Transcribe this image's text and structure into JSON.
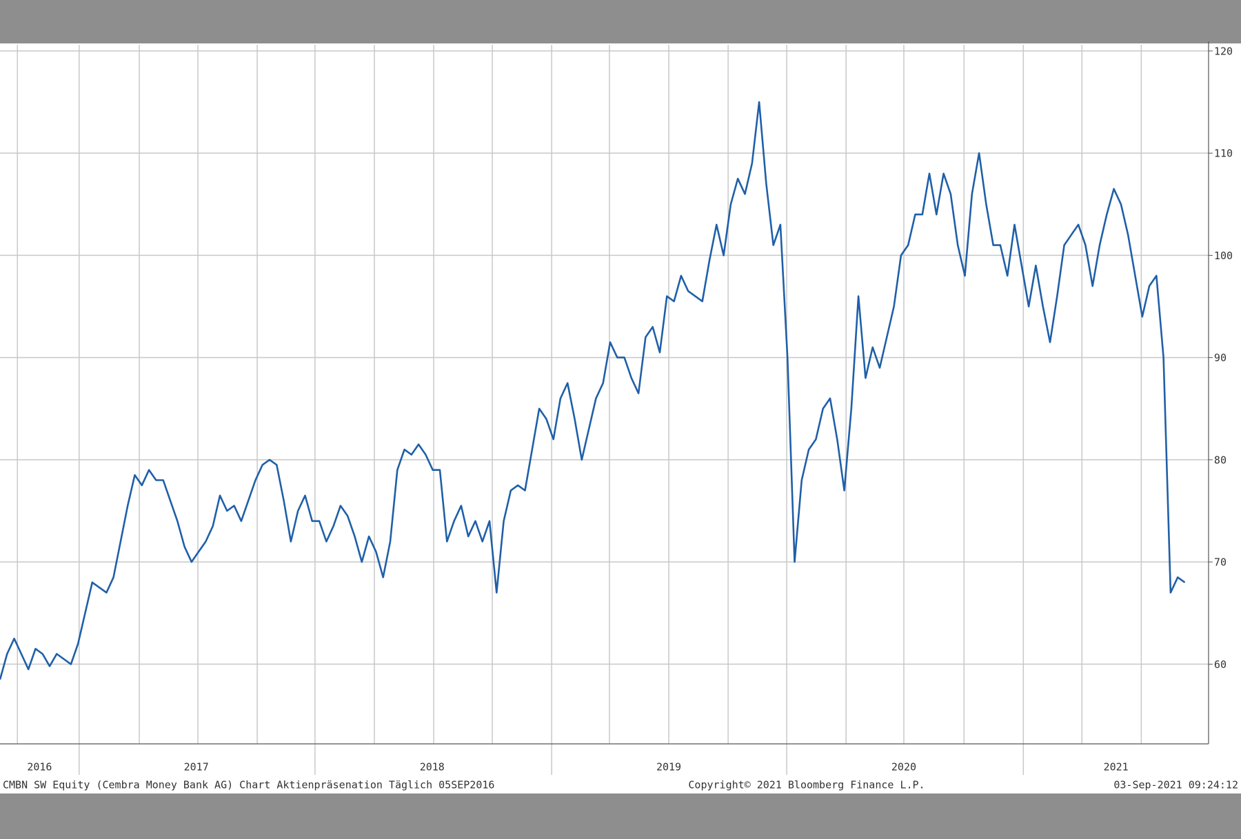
{
  "chart_data": {
    "type": "line",
    "x_labels": [
      "2016",
      "2017",
      "2018",
      "2019",
      "2020",
      "2021"
    ],
    "footer_left": "CMBN SW Equity (Cembra Money Bank AG) Chart Aktienpräsenation  Täglich 05SEP2016",
    "footer_center": "Copyright© 2021 Bloomberg Finance L.P.",
    "footer_right": "03-Sep-2021 09:24:12",
    "color": "#1f5fa8",
    "ylim": [
      52.2,
      120.6
    ],
    "yticks": [
      60,
      70,
      80,
      90,
      100,
      110,
      120
    ],
    "grid": true,
    "values": [
      58.5,
      61,
      62.5,
      61,
      59.5,
      61.5,
      61,
      59.8,
      61,
      60.5,
      60,
      62,
      65,
      68,
      67.5,
      67,
      68.5,
      72,
      75.5,
      78.5,
      77.5,
      79,
      78,
      78,
      76,
      74,
      71.5,
      70,
      71,
      72,
      73.5,
      76.5,
      75,
      75.5,
      74,
      76,
      78,
      79.5,
      80,
      79.5,
      76,
      72,
      75,
      76.5,
      74,
      74,
      72,
      73.5,
      75.5,
      74.5,
      72.5,
      70,
      72.5,
      71,
      68.5,
      72,
      79,
      81,
      80.5,
      81.5,
      80.5,
      79,
      79,
      72,
      74,
      75.5,
      72.5,
      74,
      72,
      74,
      67,
      74,
      77,
      77.5,
      77,
      81,
      85,
      84,
      82,
      86,
      87.5,
      84,
      80,
      83,
      86,
      87.5,
      91.5,
      90,
      90,
      88,
      86.5,
      92,
      93,
      90.5,
      96,
      95.5,
      98,
      96.5,
      96,
      95.5,
      99.5,
      103,
      100,
      105,
      107.5,
      106,
      109,
      115,
      107,
      101,
      103,
      90,
      70,
      78,
      81,
      82,
      85,
      86,
      82,
      77,
      85,
      96,
      88,
      91,
      89,
      92,
      95,
      100,
      101,
      104,
      104,
      108,
      104,
      108,
      106,
      101,
      98,
      106,
      110,
      105,
      101,
      101,
      98,
      103,
      99,
      95,
      99,
      95,
      91.5,
      96,
      101,
      102,
      103,
      101,
      97,
      101,
      104,
      106.5,
      105,
      102,
      98,
      94,
      97,
      98,
      90,
      67,
      68.5,
      68
    ]
  }
}
